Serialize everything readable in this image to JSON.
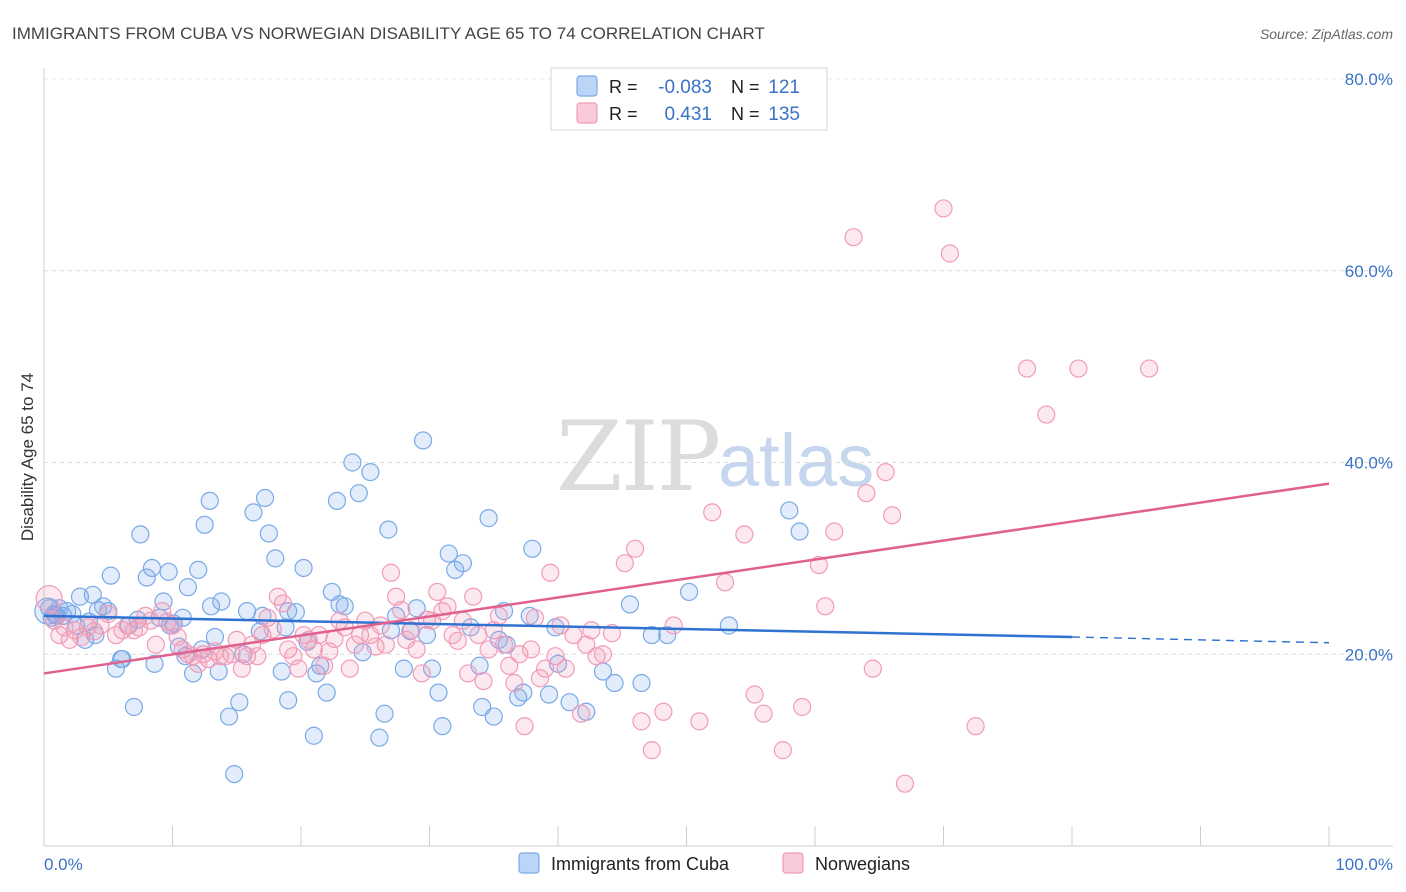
{
  "chart_data": {
    "type": "scatter",
    "title": "IMMIGRANTS FROM CUBA VS NORWEGIAN DISABILITY AGE 65 TO 74 CORRELATION CHART",
    "source": "Source: ZipAtlas.com",
    "watermark": {
      "zip": "ZIP",
      "atlas": "atlas"
    },
    "ylabel": "Disability Age 65 to 74",
    "xlim": [
      0,
      100
    ],
    "ylim": [
      0,
      80
    ],
    "x_tick_labels": [
      "0.0%",
      "100.0%"
    ],
    "y_ticks": [
      {
        "value": 20,
        "label": "20.0%"
      },
      {
        "value": 40,
        "label": "40.0%"
      },
      {
        "value": 60,
        "label": "60.0%"
      },
      {
        "value": 80,
        "label": "80.0%"
      }
    ],
    "grid": true,
    "legend_position": "top-center",
    "series": [
      {
        "name": "Immigrants from Cuba",
        "color": "#7aaae8",
        "line_color": "#2f72d0",
        "r_label": "R =",
        "r_value": "-0.083",
        "n_label": "N =",
        "n_value": "121",
        "trend": {
          "x0": 0,
          "y0": 24.0,
          "x1": 80,
          "y1": 21.8,
          "dash_to_x": 100,
          "dash_to_y": 21.2
        },
        "points": [
          [
            0.3,
            24.5
          ],
          [
            0.6,
            23.8
          ],
          [
            0.8,
            24.2
          ],
          [
            1.2,
            24.8
          ],
          [
            1.5,
            24.0
          ],
          [
            1.8,
            24.5
          ],
          [
            2.5,
            23.0
          ],
          [
            2.8,
            26.0
          ],
          [
            3.2,
            21.5
          ],
          [
            3.8,
            26.2
          ],
          [
            4.2,
            24.6
          ],
          [
            4.6,
            25.0
          ],
          [
            5.2,
            28.2
          ],
          [
            5.6,
            18.5
          ],
          [
            6.1,
            19.5
          ],
          [
            6.6,
            23.0
          ],
          [
            7.0,
            14.5
          ],
          [
            7.5,
            32.5
          ],
          [
            8.0,
            28.0
          ],
          [
            8.4,
            29.0
          ],
          [
            8.6,
            19.0
          ],
          [
            9.0,
            23.8
          ],
          [
            9.3,
            25.5
          ],
          [
            9.7,
            28.6
          ],
          [
            10.1,
            23.2
          ],
          [
            10.5,
            20.8
          ],
          [
            10.8,
            23.8
          ],
          [
            11.2,
            27.0
          ],
          [
            11.6,
            18.0
          ],
          [
            12.0,
            28.8
          ],
          [
            12.5,
            33.5
          ],
          [
            12.9,
            36.0
          ],
          [
            13.3,
            21.8
          ],
          [
            13.6,
            18.2
          ],
          [
            13.8,
            25.5
          ],
          [
            14.4,
            13.5
          ],
          [
            14.8,
            7.5
          ],
          [
            15.2,
            15.0
          ],
          [
            15.8,
            24.5
          ],
          [
            16.3,
            34.8
          ],
          [
            16.8,
            22.4
          ],
          [
            17.2,
            36.3
          ],
          [
            17.5,
            32.6
          ],
          [
            18.0,
            30.0
          ],
          [
            18.5,
            18.2
          ],
          [
            19.0,
            15.2
          ],
          [
            19.6,
            24.4
          ],
          [
            20.2,
            29.0
          ],
          [
            20.5,
            21.3
          ],
          [
            21.0,
            11.5
          ],
          [
            21.5,
            18.8
          ],
          [
            22.0,
            16.0
          ],
          [
            22.4,
            26.5
          ],
          [
            22.8,
            36.0
          ],
          [
            23.4,
            25.0
          ],
          [
            24.0,
            40.0
          ],
          [
            24.5,
            36.8
          ],
          [
            25.4,
            39.0
          ],
          [
            26.1,
            11.3
          ],
          [
            26.5,
            13.8
          ],
          [
            26.8,
            33.0
          ],
          [
            27.4,
            24.0
          ],
          [
            28.0,
            18.5
          ],
          [
            28.5,
            22.4
          ],
          [
            29.0,
            24.8
          ],
          [
            29.5,
            42.3
          ],
          [
            30.2,
            18.5
          ],
          [
            30.7,
            16.0
          ],
          [
            31.0,
            12.5
          ],
          [
            31.5,
            30.5
          ],
          [
            32.0,
            28.8
          ],
          [
            33.2,
            22.8
          ],
          [
            33.9,
            18.8
          ],
          [
            34.1,
            14.5
          ],
          [
            34.6,
            34.2
          ],
          [
            35.0,
            13.5
          ],
          [
            35.4,
            21.5
          ],
          [
            36.0,
            21.0
          ],
          [
            36.9,
            15.5
          ],
          [
            37.3,
            16.0
          ],
          [
            38.0,
            31.0
          ],
          [
            39.3,
            15.8
          ],
          [
            39.8,
            22.8
          ],
          [
            40.0,
            19.0
          ],
          [
            40.9,
            15.0
          ],
          [
            42.2,
            14.0
          ],
          [
            43.5,
            18.2
          ],
          [
            44.4,
            17.0
          ],
          [
            45.6,
            25.2
          ],
          [
            46.5,
            17.0
          ],
          [
            47.3,
            22.0
          ],
          [
            48.5,
            22.0
          ],
          [
            50.2,
            26.5
          ],
          [
            53.3,
            23.0
          ],
          [
            58.0,
            35.0
          ],
          [
            58.8,
            32.8
          ],
          [
            1.0,
            24.0
          ],
          [
            2.2,
            24.2
          ],
          [
            3.5,
            23.4
          ],
          [
            4.0,
            22.0
          ],
          [
            5.0,
            24.5
          ],
          [
            6.0,
            19.5
          ],
          [
            9.8,
            23.0
          ],
          [
            13.0,
            25.0
          ],
          [
            15.5,
            20.0
          ],
          [
            17.0,
            24.0
          ],
          [
            19.0,
            24.5
          ],
          [
            21.2,
            18.0
          ],
          [
            23.0,
            25.2
          ],
          [
            27.0,
            22.5
          ],
          [
            29.8,
            22.0
          ],
          [
            32.6,
            29.5
          ],
          [
            35.8,
            24.5
          ],
          [
            37.8,
            24.0
          ],
          [
            0.4,
            24.8
          ],
          [
            0.9,
            24.1
          ],
          [
            7.3,
            23.6
          ],
          [
            11.0,
            19.8
          ],
          [
            12.3,
            20.5
          ],
          [
            18.8,
            22.8
          ],
          [
            24.8,
            20.2
          ]
        ]
      },
      {
        "name": "Norwegians",
        "color": "#f29bb8",
        "line_color": "#e0608e",
        "r_label": "R =",
        "r_value": "0.431",
        "n_label": "N =",
        "n_value": "135",
        "trend": {
          "x0": 0,
          "y0": 18.0,
          "x1": 100,
          "y1": 37.8
        },
        "points": [
          [
            0.4,
            25.8
          ],
          [
            0.8,
            23.5
          ],
          [
            1.2,
            22.0
          ],
          [
            1.6,
            22.8
          ],
          [
            2.0,
            21.5
          ],
          [
            2.4,
            22.5
          ],
          [
            2.9,
            21.8
          ],
          [
            3.4,
            22.8
          ],
          [
            3.9,
            22.4
          ],
          [
            4.4,
            23.0
          ],
          [
            5.0,
            24.2
          ],
          [
            5.6,
            22.0
          ],
          [
            6.1,
            22.5
          ],
          [
            6.5,
            23.0
          ],
          [
            7.0,
            22.5
          ],
          [
            7.4,
            22.8
          ],
          [
            7.9,
            24.0
          ],
          [
            8.3,
            23.5
          ],
          [
            8.7,
            21.0
          ],
          [
            9.2,
            24.5
          ],
          [
            9.6,
            23.4
          ],
          [
            10.0,
            23.0
          ],
          [
            10.4,
            21.8
          ],
          [
            10.8,
            20.5
          ],
          [
            11.2,
            20.0
          ],
          [
            11.6,
            19.8
          ],
          [
            12.0,
            19.0
          ],
          [
            12.4,
            20.0
          ],
          [
            12.8,
            19.5
          ],
          [
            13.3,
            20.3
          ],
          [
            13.7,
            19.8
          ],
          [
            14.1,
            19.8
          ],
          [
            14.6,
            20.0
          ],
          [
            15.0,
            21.5
          ],
          [
            15.4,
            18.5
          ],
          [
            15.8,
            19.8
          ],
          [
            16.2,
            21.0
          ],
          [
            16.6,
            19.8
          ],
          [
            17.0,
            22.0
          ],
          [
            17.4,
            23.8
          ],
          [
            17.8,
            22.6
          ],
          [
            18.2,
            26.0
          ],
          [
            18.6,
            25.3
          ],
          [
            19.0,
            20.5
          ],
          [
            19.4,
            19.8
          ],
          [
            19.8,
            18.5
          ],
          [
            20.2,
            22.0
          ],
          [
            20.6,
            21.5
          ],
          [
            21.0,
            20.5
          ],
          [
            21.4,
            22.0
          ],
          [
            21.8,
            18.8
          ],
          [
            22.2,
            20.3
          ],
          [
            22.6,
            21.6
          ],
          [
            23.0,
            23.5
          ],
          [
            23.4,
            22.8
          ],
          [
            23.8,
            18.5
          ],
          [
            24.2,
            21.0
          ],
          [
            24.6,
            22.0
          ],
          [
            25.0,
            23.5
          ],
          [
            25.4,
            22.0
          ],
          [
            25.8,
            20.8
          ],
          [
            26.2,
            23.0
          ],
          [
            26.6,
            21.0
          ],
          [
            27.0,
            28.5
          ],
          [
            27.4,
            26.0
          ],
          [
            27.8,
            24.6
          ],
          [
            28.2,
            21.5
          ],
          [
            28.6,
            22.5
          ],
          [
            29.0,
            20.5
          ],
          [
            29.4,
            18.0
          ],
          [
            29.8,
            23.6
          ],
          [
            30.2,
            23.5
          ],
          [
            30.6,
            26.5
          ],
          [
            31.0,
            24.5
          ],
          [
            31.4,
            25.0
          ],
          [
            31.8,
            22.0
          ],
          [
            32.2,
            21.4
          ],
          [
            32.6,
            23.5
          ],
          [
            33.0,
            18.0
          ],
          [
            33.4,
            26.0
          ],
          [
            33.8,
            22.0
          ],
          [
            34.2,
            17.2
          ],
          [
            34.6,
            20.5
          ],
          [
            35.0,
            22.5
          ],
          [
            35.4,
            24.0
          ],
          [
            35.8,
            21.0
          ],
          [
            36.2,
            18.8
          ],
          [
            36.6,
            17.0
          ],
          [
            37.0,
            20.0
          ],
          [
            37.4,
            12.5
          ],
          [
            37.9,
            20.5
          ],
          [
            38.2,
            23.8
          ],
          [
            38.6,
            17.5
          ],
          [
            39.0,
            18.5
          ],
          [
            39.4,
            28.5
          ],
          [
            39.8,
            19.8
          ],
          [
            40.2,
            23.0
          ],
          [
            40.6,
            18.5
          ],
          [
            41.2,
            22.0
          ],
          [
            41.8,
            13.8
          ],
          [
            42.2,
            21.0
          ],
          [
            42.6,
            22.5
          ],
          [
            43.0,
            19.8
          ],
          [
            43.5,
            20.0
          ],
          [
            44.2,
            22.2
          ],
          [
            45.2,
            29.5
          ],
          [
            46.0,
            31.0
          ],
          [
            46.5,
            13.0
          ],
          [
            47.3,
            10.0
          ],
          [
            48.2,
            14.0
          ],
          [
            49.0,
            23.0
          ],
          [
            51.0,
            13.0
          ],
          [
            52.0,
            34.8
          ],
          [
            53.0,
            27.5
          ],
          [
            54.5,
            32.5
          ],
          [
            55.3,
            15.8
          ],
          [
            56.0,
            13.8
          ],
          [
            57.5,
            10.0
          ],
          [
            59.0,
            14.5
          ],
          [
            60.3,
            29.3
          ],
          [
            60.8,
            25.0
          ],
          [
            61.5,
            32.8
          ],
          [
            63.0,
            63.5
          ],
          [
            64.0,
            36.8
          ],
          [
            64.5,
            18.5
          ],
          [
            65.5,
            39.0
          ],
          [
            66.0,
            34.5
          ],
          [
            67.0,
            6.5
          ],
          [
            70.0,
            66.5
          ],
          [
            70.5,
            61.8
          ],
          [
            72.5,
            12.5
          ],
          [
            76.5,
            49.8
          ],
          [
            78.0,
            45.0
          ],
          [
            80.5,
            49.8
          ],
          [
            86.0,
            49.8
          ]
        ]
      }
    ]
  }
}
